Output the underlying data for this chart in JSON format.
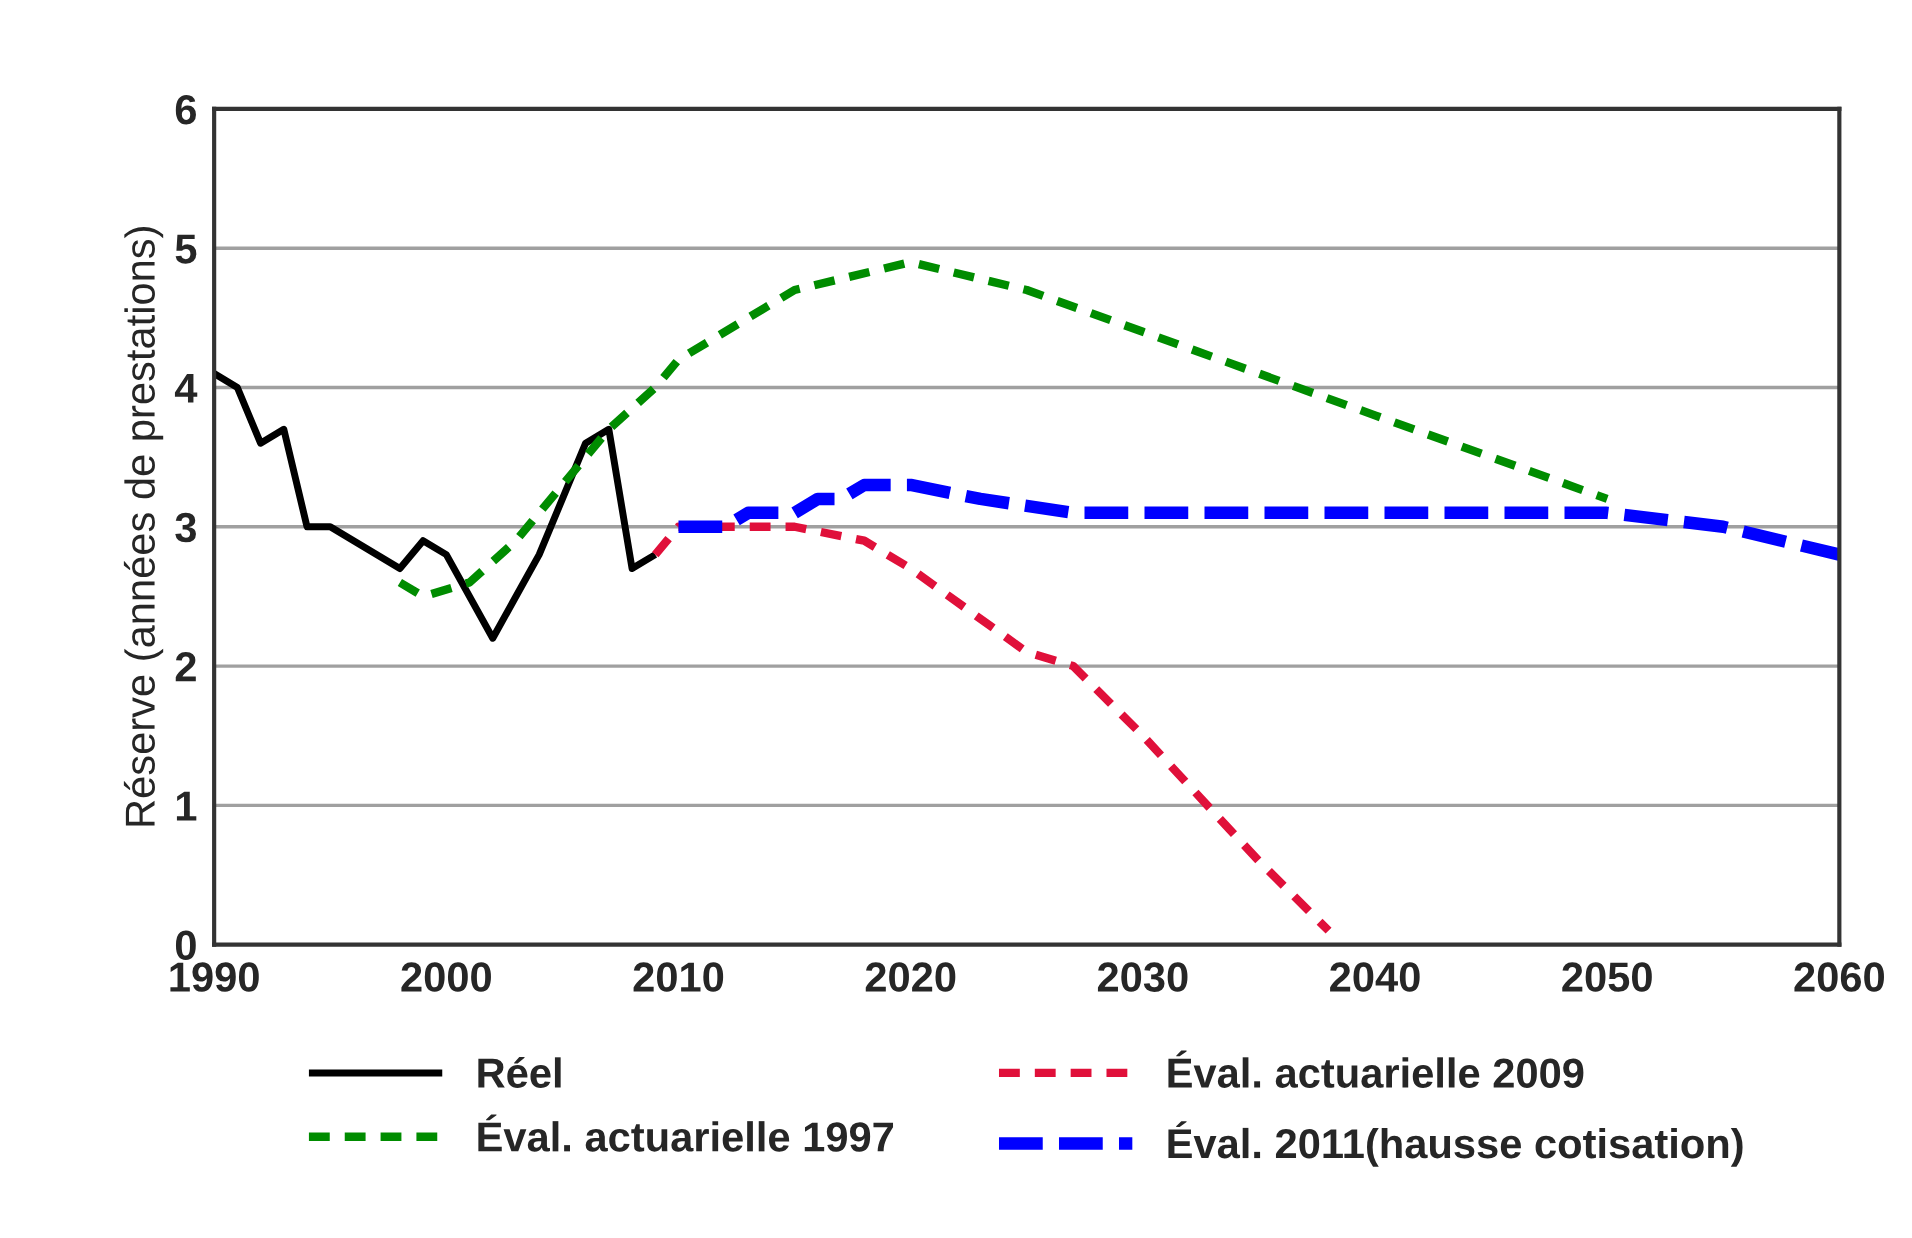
{
  "chart_data": {
    "type": "line",
    "ylabel": "Réserve (années de prestations)",
    "xlim": [
      1990,
      2060
    ],
    "xticks": [
      1990,
      2000,
      2010,
      2020,
      2030,
      2040,
      2050,
      2060
    ],
    "ylim": [
      0,
      6
    ],
    "yticks": [
      0,
      1,
      2,
      3,
      4,
      5,
      6
    ],
    "grid": "y",
    "legend": "bottom",
    "marker": "none",
    "series": [
      {
        "name": "Réel",
        "color": "#000000",
        "line_style": "solid",
        "x": [
          1990,
          1991,
          1992,
          1993,
          1994,
          1995,
          1998,
          1999,
          2000,
          2002,
          2004,
          2006,
          2007,
          2008,
          2009
        ],
        "values": [
          4.1,
          4.0,
          3.6,
          3.7,
          3.0,
          3.0,
          2.7,
          2.9,
          2.8,
          2.2,
          2.8,
          3.6,
          3.7,
          2.7,
          2.8
        ]
      },
      {
        "name": "Éval. actuarielle 1997",
        "color": "#008c00",
        "line_style": "dashed",
        "x": [
          1998,
          1999,
          2001,
          2003,
          2005,
          2007,
          2009,
          2010,
          2013,
          2015,
          2020,
          2025,
          2030,
          2035,
          2040,
          2045,
          2050
        ],
        "values": [
          2.6,
          2.5,
          2.6,
          2.9,
          3.3,
          3.7,
          4.0,
          4.2,
          4.5,
          4.7,
          4.9,
          4.7,
          4.4,
          4.1,
          3.8,
          3.5,
          3.2
        ]
      },
      {
        "name": "Éval. actuarielle 2009",
        "color": "#e0103a",
        "line_style": "dashed",
        "x": [
          2009,
          2010,
          2015,
          2018,
          2020,
          2025,
          2027,
          2030,
          2035,
          2038
        ],
        "values": [
          2.8,
          3.0,
          3.0,
          2.9,
          2.7,
          2.1,
          2.0,
          1.5,
          0.6,
          0.1
        ]
      },
      {
        "name": "Éval. 2011(hausse cotisation)",
        "color": "#0000ff",
        "line_style": "longdash",
        "x": [
          2010,
          2012,
          2013,
          2015,
          2016,
          2017,
          2018,
          2020,
          2023,
          2027,
          2050,
          2055,
          2060
        ],
        "values": [
          3.0,
          3.0,
          3.1,
          3.1,
          3.2,
          3.2,
          3.3,
          3.3,
          3.2,
          3.1,
          3.1,
          3.0,
          2.8
        ]
      }
    ]
  }
}
